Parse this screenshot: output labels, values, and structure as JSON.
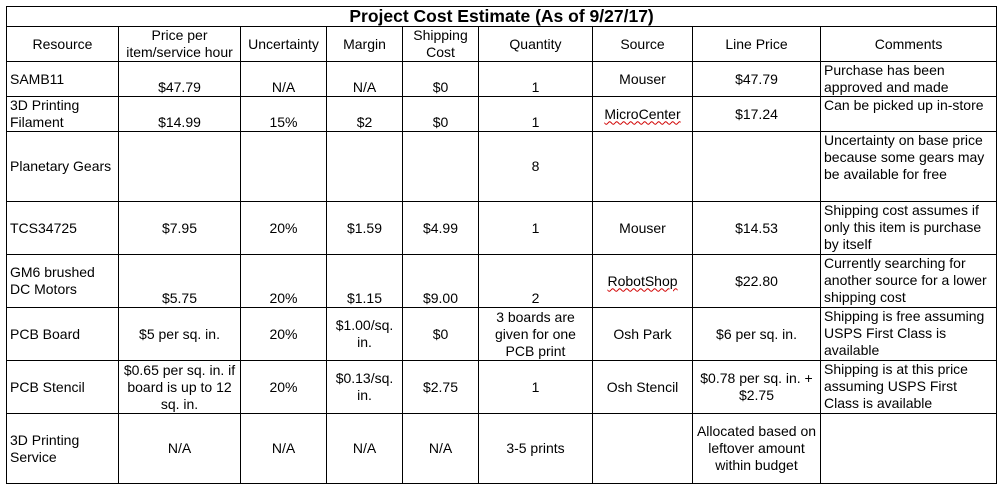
{
  "title": "Project Cost Estimate (As of 9/27/17)",
  "headers": {
    "resource": "Resource",
    "price": "Price per item/service hour",
    "uncertainty": "Uncertainty",
    "margin": "Margin",
    "shipping": "Shipping Cost",
    "quantity": "Quantity",
    "source": "Source",
    "line_price": "Line Price",
    "comments": "Comments"
  },
  "rows": [
    {
      "resource": "SAMB11",
      "price": "$47.79",
      "uncertainty": "N/A",
      "margin": "N/A",
      "shipping": "$0",
      "quantity": "1",
      "source": "Mouser",
      "line_price": "$47.79",
      "comments": "Purchase has been approved and made"
    },
    {
      "resource": "3D Printing Filament",
      "price": "$14.99",
      "uncertainty": "15%",
      "margin": "$2",
      "shipping": "$0",
      "quantity": "1",
      "source": "MicroCenter",
      "line_price": "$17.24",
      "comments": "Can be picked up in-store"
    },
    {
      "resource": "Planetary Gears",
      "price": "",
      "uncertainty": "",
      "margin": "",
      "shipping": "",
      "quantity": "8",
      "source": "",
      "line_price": "",
      "comments": "Uncertainty on base price because some gears may be available for free"
    },
    {
      "resource": "TCS34725",
      "price": "$7.95",
      "uncertainty": "20%",
      "margin": "$1.59",
      "shipping": "$4.99",
      "quantity": "1",
      "source": "Mouser",
      "line_price": "$14.53",
      "comments": "Shipping cost assumes if only this item is purchase by itself"
    },
    {
      "resource": "GM6 brushed DC Motors",
      "price": "$5.75",
      "uncertainty": "20%",
      "margin": "$1.15",
      "shipping": "$9.00",
      "quantity": "2",
      "source": "RobotShop",
      "line_price": "$22.80",
      "comments": "Currently searching for another source for a lower shipping cost"
    },
    {
      "resource": "PCB Board",
      "price": "$5 per sq. in.",
      "uncertainty": "20%",
      "margin": "$1.00/sq. in.",
      "shipping": "$0",
      "quantity": "3 boards are given for one PCB print",
      "source": "Osh Park",
      "line_price": "$6 per sq. in.",
      "comments": "Shipping is free assuming USPS First Class is available"
    },
    {
      "resource": "PCB Stencil",
      "price": "$0.65 per sq. in. if board is up to 12 sq. in.",
      "uncertainty": "20%",
      "margin": "$0.13/sq. in.",
      "shipping": "$2.75",
      "quantity": "1",
      "source": "Osh Stencil",
      "line_price": "$0.78 per sq. in. + $2.75",
      "comments": "Shipping is at this price assuming USPS First Class is available"
    },
    {
      "resource": "3D Printing Service",
      "price": "N/A",
      "uncertainty": "N/A",
      "margin": "N/A",
      "shipping": "N/A",
      "quantity": "3-5 prints",
      "source": "",
      "line_price": "Allocated based on leftover amount within budget",
      "comments": ""
    }
  ]
}
